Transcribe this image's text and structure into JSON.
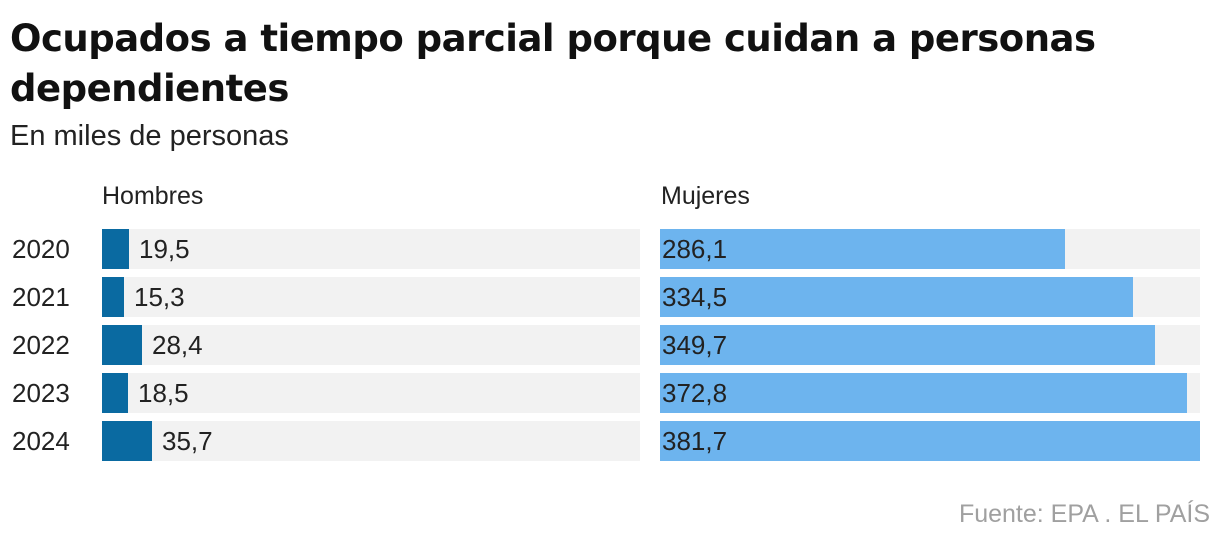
{
  "title": "Ocupados a tiempo parcial porque cuidan a personas dependientes",
  "subtitle": "En miles de personas",
  "source": "Fuente: EPA . EL PAÍS",
  "colors": {
    "hombres": "#0a6aa1",
    "mujeres": "#6db4ee",
    "track": "#f2f2f2"
  },
  "chart_data": {
    "type": "bar",
    "orientation": "horizontal",
    "categories": [
      "2020",
      "2021",
      "2022",
      "2023",
      "2024"
    ],
    "series": [
      {
        "name": "Hombres",
        "values": [
          19.5,
          15.3,
          28.4,
          18.5,
          35.7
        ],
        "labels": [
          "19,5",
          "15,3",
          "28,4",
          "18,5",
          "35,7"
        ]
      },
      {
        "name": "Mujeres",
        "values": [
          286.1,
          334.5,
          349.7,
          372.8,
          381.7
        ],
        "labels": [
          "286,1",
          "334,5",
          "349,7",
          "372,8",
          "381,7"
        ]
      }
    ],
    "xlim": [
      0,
      381.7
    ]
  }
}
